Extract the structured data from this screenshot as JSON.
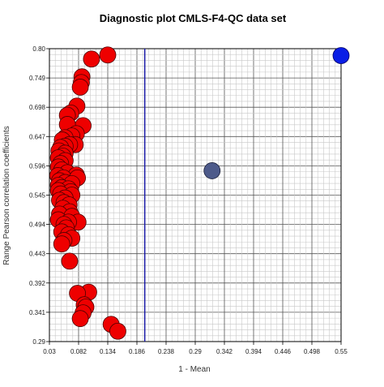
{
  "chart_data": {
    "type": "scatter",
    "title": "Diagnostic plot CMLS-F4-QC data set",
    "xlabel": "1 - Mean",
    "ylabel": "Range Pearson correlation coefficients",
    "xlim": [
      0.03,
      0.55
    ],
    "ylim": [
      0.29,
      0.8
    ],
    "x_ticks": [
      "0.03",
      "0.082",
      "0.134",
      "0.186",
      "0.238",
      "0.29",
      "0.342",
      "0.394",
      "0.446",
      "0.498",
      "0.55"
    ],
    "y_ticks": [
      "0.29",
      "0.341",
      "0.392",
      "0.443",
      "0.494",
      "0.545",
      "0.596",
      "0.647",
      "0.698",
      "0.749",
      "0.80"
    ],
    "grid": true,
    "threshold_line": {
      "x": 0.2,
      "color": "#1a1aa6"
    },
    "colors": {
      "red": "#ee0000",
      "slate": "#4d5a8a",
      "blue": "#0a1ee6"
    },
    "series": [
      {
        "color": "red",
        "points": [
          [
            0.134,
            0.789
          ],
          [
            0.105,
            0.782
          ],
          [
            0.088,
            0.751
          ],
          [
            0.087,
            0.741
          ],
          [
            0.085,
            0.733
          ],
          [
            0.079,
            0.7
          ],
          [
            0.068,
            0.688
          ],
          [
            0.062,
            0.684
          ],
          [
            0.09,
            0.666
          ],
          [
            0.062,
            0.668
          ],
          [
            0.078,
            0.652
          ],
          [
            0.07,
            0.648
          ],
          [
            0.058,
            0.645
          ],
          [
            0.053,
            0.641
          ],
          [
            0.076,
            0.633
          ],
          [
            0.066,
            0.633
          ],
          [
            0.058,
            0.63
          ],
          [
            0.05,
            0.628
          ],
          [
            0.047,
            0.622
          ],
          [
            0.058,
            0.618
          ],
          [
            0.054,
            0.613
          ],
          [
            0.046,
            0.61
          ],
          [
            0.058,
            0.605
          ],
          [
            0.05,
            0.6
          ],
          [
            0.046,
            0.594
          ],
          [
            0.052,
            0.589
          ],
          [
            0.062,
            0.584
          ],
          [
            0.078,
            0.58
          ],
          [
            0.045,
            0.579
          ],
          [
            0.055,
            0.575
          ],
          [
            0.08,
            0.575
          ],
          [
            0.048,
            0.57
          ],
          [
            0.058,
            0.567
          ],
          [
            0.07,
            0.565
          ],
          [
            0.046,
            0.562
          ],
          [
            0.052,
            0.558
          ],
          [
            0.064,
            0.556
          ],
          [
            0.046,
            0.553
          ],
          [
            0.068,
            0.551
          ],
          [
            0.05,
            0.547
          ],
          [
            0.07,
            0.545
          ],
          [
            0.058,
            0.54
          ],
          [
            0.048,
            0.536
          ],
          [
            0.056,
            0.532
          ],
          [
            0.065,
            0.528
          ],
          [
            0.054,
            0.522
          ],
          [
            0.066,
            0.516
          ],
          [
            0.048,
            0.512
          ],
          [
            0.07,
            0.508
          ],
          [
            0.046,
            0.502
          ],
          [
            0.081,
            0.498
          ],
          [
            0.064,
            0.498
          ],
          [
            0.056,
            0.494
          ],
          [
            0.06,
            0.488
          ],
          [
            0.052,
            0.481
          ],
          [
            0.064,
            0.476
          ],
          [
            0.07,
            0.47
          ],
          [
            0.056,
            0.466
          ],
          [
            0.052,
            0.46
          ],
          [
            0.066,
            0.43
          ],
          [
            0.1,
            0.376
          ],
          [
            0.08,
            0.374
          ],
          [
            0.092,
            0.354
          ],
          [
            0.095,
            0.35
          ],
          [
            0.09,
            0.34
          ],
          [
            0.085,
            0.33
          ],
          [
            0.14,
            0.32
          ],
          [
            0.152,
            0.308
          ]
        ]
      },
      {
        "color": "slate",
        "points": [
          [
            0.32,
            0.5875
          ]
        ]
      },
      {
        "color": "blue",
        "points": [
          [
            0.55,
            0.788
          ]
        ]
      }
    ]
  }
}
